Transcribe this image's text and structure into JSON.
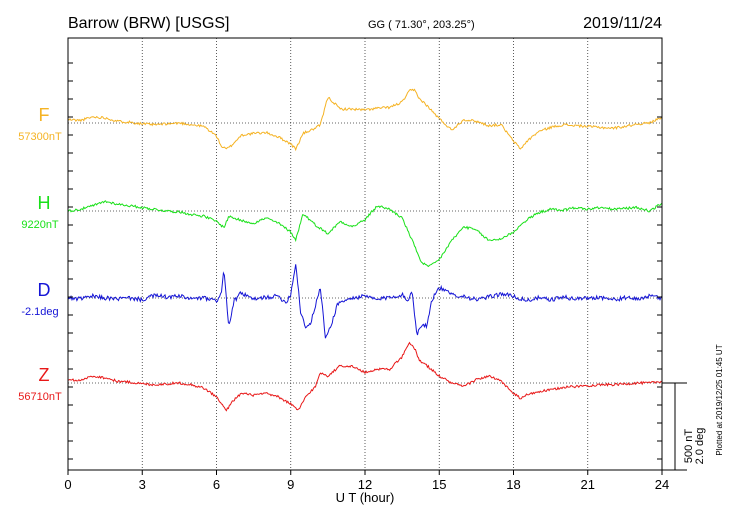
{
  "header": {
    "station": "Barrow (BRW)  [USGS]",
    "coords": "GG ( 71.30°, 203.25°)",
    "date": "2019/11/24"
  },
  "footer": {
    "plotted": "Plotted at 2019/12/25 01:45 UT"
  },
  "chart_data": {
    "type": "line",
    "xlabel": "U T (hour)",
    "xlim": [
      0,
      24
    ],
    "xticks": [
      0,
      3,
      6,
      9,
      12,
      15,
      18,
      21,
      24
    ],
    "scale": {
      "nT": "500 nT",
      "deg": "2.0 deg"
    },
    "series": [
      {
        "name": "F",
        "baseline_label": "57300nT",
        "color": "#f5b324",
        "x": [
          0,
          0.5,
          1,
          1.5,
          2,
          2.5,
          3,
          3.5,
          4,
          4.5,
          5,
          5.5,
          6,
          6.2,
          6.4,
          6.6,
          7,
          7.5,
          8,
          8.5,
          9,
          9.2,
          9.5,
          10,
          10.2,
          10.5,
          11,
          11.5,
          12,
          12.5,
          13,
          13.5,
          13.8,
          14,
          14.2,
          14.5,
          15,
          15.5,
          16,
          16.5,
          17,
          17.5,
          18,
          18.3,
          18.5,
          19,
          19.5,
          20,
          20.5,
          21,
          21.5,
          22,
          22.5,
          23,
          23.5,
          24
        ],
        "values": [
          20,
          15,
          35,
          30,
          10,
          5,
          -5,
          -10,
          -5,
          0,
          -10,
          -20,
          -75,
          -135,
          -150,
          -130,
          -70,
          -60,
          -55,
          -80,
          -120,
          -150,
          -60,
          -30,
          -10,
          150,
          80,
          80,
          75,
          85,
          90,
          120,
          185,
          190,
          140,
          100,
          25,
          -40,
          20,
          10,
          -15,
          -10,
          -105,
          -150,
          -110,
          -50,
          -25,
          -10,
          -15,
          -20,
          -25,
          -30,
          -20,
          -5,
          0,
          35
        ]
      },
      {
        "name": "H",
        "baseline_label": "9220nT",
        "color": "#19e019",
        "x": [
          0,
          0.5,
          1,
          1.5,
          2,
          2.5,
          3,
          3.5,
          4,
          4.5,
          5,
          5.5,
          6,
          6.3,
          6.5,
          7,
          7.5,
          8,
          8.5,
          9,
          9.2,
          9.5,
          10,
          10.5,
          11,
          11.5,
          12,
          12.5,
          13,
          13.5,
          14,
          14.3,
          14.6,
          15,
          15.5,
          16,
          16.5,
          17,
          17.5,
          18,
          18.5,
          19,
          19.5,
          20,
          20.5,
          21,
          21.5,
          22,
          22.5,
          23,
          23.5,
          24
        ],
        "values": [
          0,
          10,
          30,
          55,
          40,
          30,
          20,
          10,
          0,
          -5,
          -20,
          -30,
          -60,
          -95,
          -30,
          -55,
          -70,
          -40,
          -70,
          -120,
          -165,
          -15,
          -80,
          -130,
          -60,
          -90,
          -50,
          30,
          10,
          -40,
          -200,
          -300,
          -320,
          -280,
          -170,
          -90,
          -110,
          -170,
          -160,
          -120,
          -55,
          -10,
          10,
          5,
          20,
          10,
          20,
          10,
          15,
          20,
          0,
          45
        ]
      },
      {
        "name": "D",
        "baseline_label": "-2.1deg",
        "color": "#1515d6",
        "x": [
          0,
          0.5,
          1,
          1.5,
          2,
          2.5,
          3,
          3.5,
          4,
          4.5,
          5,
          5.5,
          6,
          6.2,
          6.3,
          6.5,
          6.7,
          7,
          7.5,
          8,
          8.5,
          8.8,
          9,
          9.2,
          9.4,
          9.6,
          9.8,
          10,
          10.2,
          10.4,
          10.6,
          10.9,
          11.5,
          12,
          12.5,
          13,
          13.5,
          13.7,
          13.9,
          14.1,
          14.3,
          14.5,
          14.7,
          15,
          15.5,
          16,
          16.5,
          17,
          17.5,
          18,
          18.5,
          19,
          19.5,
          20,
          20.5,
          21,
          21.5,
          22,
          22.5,
          23,
          23.5,
          24
        ],
        "values": [
          0,
          -5,
          10,
          0,
          -5,
          0,
          -10,
          15,
          5,
          10,
          -5,
          0,
          -20,
          40,
          160,
          -170,
          -20,
          30,
          -10,
          5,
          10,
          -25,
          20,
          200,
          -80,
          -165,
          -150,
          -40,
          60,
          -230,
          -170,
          -30,
          0,
          10,
          -10,
          5,
          20,
          -20,
          40,
          -210,
          -150,
          -160,
          -10,
          60,
          20,
          10,
          -10,
          5,
          25,
          10,
          -15,
          0,
          -10,
          5,
          -5,
          0,
          5,
          -10,
          0,
          -5,
          10,
          0
        ]
      },
      {
        "name": "Z",
        "baseline_label": "56710nT",
        "color": "#e81818",
        "x": [
          0,
          0.5,
          1,
          1.5,
          2,
          2.5,
          3,
          3.5,
          4,
          4.5,
          5,
          5.5,
          6,
          6.2,
          6.4,
          6.6,
          7,
          7.5,
          8,
          8.5,
          9,
          9.3,
          9.6,
          10,
          10.2,
          10.5,
          11,
          11.5,
          12,
          12.5,
          13,
          13.5,
          13.8,
          14,
          14.2,
          14.5,
          15,
          15.5,
          16,
          16.5,
          17,
          17.5,
          18,
          18.3,
          18.5,
          19,
          19.5,
          20,
          20.5,
          21,
          21.5,
          22,
          22.5,
          23,
          23.5,
          24
        ],
        "values": [
          20,
          15,
          40,
          30,
          10,
          5,
          -5,
          -10,
          -5,
          0,
          -10,
          -30,
          -80,
          -120,
          -160,
          -110,
          -60,
          -70,
          -60,
          -80,
          -120,
          -160,
          -80,
          -20,
          60,
          40,
          100,
          95,
          60,
          80,
          80,
          150,
          230,
          200,
          130,
          100,
          40,
          0,
          -20,
          20,
          40,
          10,
          -60,
          -90,
          -70,
          -50,
          -40,
          -25,
          -20,
          -15,
          -10,
          -10,
          -5,
          0,
          0,
          10
        ]
      }
    ]
  }
}
